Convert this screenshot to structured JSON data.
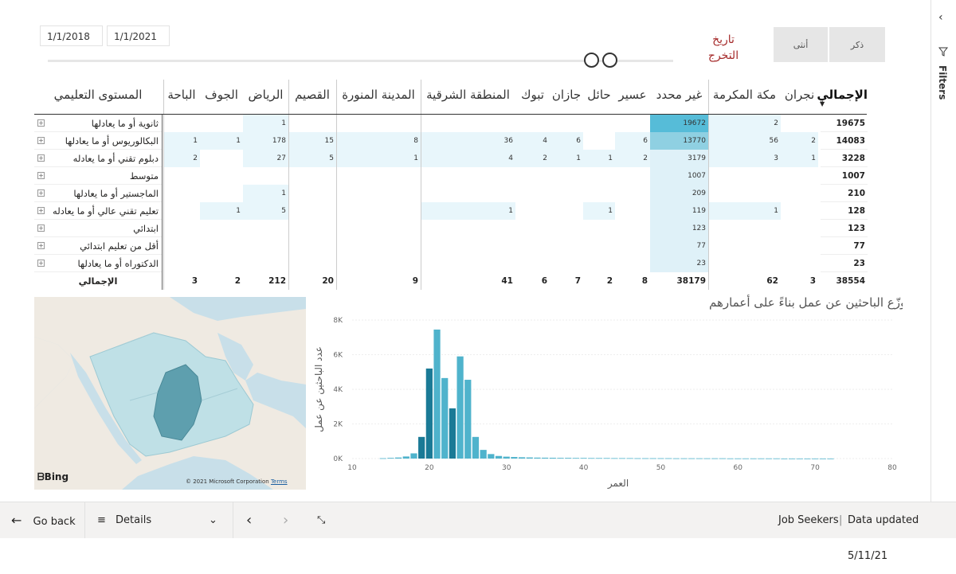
{
  "slicer": {
    "start_date": "1/1/2018",
    "end_date": "1/1/2021",
    "graduation_title_line1": "تاريخ",
    "graduation_title_line2": "التخرج",
    "gender_male": "ذكر",
    "gender_female": "أنثى"
  },
  "filters_pane": {
    "label": "Filters"
  },
  "matrix": {
    "row_header": "المستوى التعليمي",
    "columns": [
      {
        "key": "total",
        "label": "الإجمالي"
      },
      {
        "key": "najran",
        "label": "نجران"
      },
      {
        "key": "makkah",
        "label": "مكة المكرمة"
      },
      {
        "key": "unknown",
        "label": "غير محدد"
      },
      {
        "key": "asir",
        "label": "عسير"
      },
      {
        "key": "hail",
        "label": "حائل"
      },
      {
        "key": "jazan",
        "label": "جازان"
      },
      {
        "key": "tabuk",
        "label": "تبوك"
      },
      {
        "key": "eastern",
        "label": "المنطقة الشرقية"
      },
      {
        "key": "madinah",
        "label": "المدينة المنورة"
      },
      {
        "key": "qassim",
        "label": "القصيم"
      },
      {
        "key": "riyadh",
        "label": "الرياض"
      },
      {
        "key": "jouf",
        "label": "الجوف"
      },
      {
        "key": "baha",
        "label": "الباحة"
      }
    ],
    "rows": [
      {
        "label": "ثانوية أو ما يعادلها",
        "values": {
          "total": "19675",
          "najran": "",
          "makkah": "2",
          "unknown": "19672",
          "asir": "",
          "hail": "",
          "jazan": "",
          "tabuk": "",
          "eastern": "",
          "madinah": "",
          "qassim": "",
          "riyadh": "1",
          "jouf": "",
          "baha": ""
        }
      },
      {
        "label": "البكالوريوس أو ما يعادلها",
        "values": {
          "total": "14083",
          "najran": "2",
          "makkah": "56",
          "unknown": "13770",
          "asir": "6",
          "hail": "",
          "jazan": "6",
          "tabuk": "4",
          "eastern": "36",
          "madinah": "8",
          "qassim": "15",
          "riyadh": "178",
          "jouf": "1",
          "baha": "1"
        }
      },
      {
        "label": "دبلوم تقني أو ما يعادله",
        "values": {
          "total": "3228",
          "najran": "1",
          "makkah": "3",
          "unknown": "3179",
          "asir": "2",
          "hail": "1",
          "jazan": "1",
          "tabuk": "2",
          "eastern": "4",
          "madinah": "1",
          "qassim": "5",
          "riyadh": "27",
          "jouf": "",
          "baha": "2"
        }
      },
      {
        "label": "متوسط",
        "values": {
          "total": "1007",
          "najran": "",
          "makkah": "",
          "unknown": "1007",
          "asir": "",
          "hail": "",
          "jazan": "",
          "tabuk": "",
          "eastern": "",
          "madinah": "",
          "qassim": "",
          "riyadh": "",
          "jouf": "",
          "baha": ""
        }
      },
      {
        "label": "الماجستير أو ما يعادلها",
        "values": {
          "total": "210",
          "najran": "",
          "makkah": "",
          "unknown": "209",
          "asir": "",
          "hail": "",
          "jazan": "",
          "tabuk": "",
          "eastern": "",
          "madinah": "",
          "qassim": "",
          "riyadh": "1",
          "jouf": "",
          "baha": ""
        }
      },
      {
        "label": "تعليم تقني عالي أو ما يعادله",
        "values": {
          "total": "128",
          "najran": "",
          "makkah": "1",
          "unknown": "119",
          "asir": "",
          "hail": "1",
          "jazan": "",
          "tabuk": "",
          "eastern": "1",
          "madinah": "",
          "qassim": "",
          "riyadh": "5",
          "jouf": "1",
          "baha": ""
        }
      },
      {
        "label": "ابتدائي",
        "values": {
          "total": "123",
          "najran": "",
          "makkah": "",
          "unknown": "123",
          "asir": "",
          "hail": "",
          "jazan": "",
          "tabuk": "",
          "eastern": "",
          "madinah": "",
          "qassim": "",
          "riyadh": "",
          "jouf": "",
          "baha": ""
        }
      },
      {
        "label": "أقل من تعليم ابتدائي",
        "values": {
          "total": "77",
          "najran": "",
          "makkah": "",
          "unknown": "77",
          "asir": "",
          "hail": "",
          "jazan": "",
          "tabuk": "",
          "eastern": "",
          "madinah": "",
          "qassim": "",
          "riyadh": "",
          "jouf": "",
          "baha": ""
        }
      },
      {
        "label": "الدكتوراه أو ما يعادلها",
        "values": {
          "total": "23",
          "najran": "",
          "makkah": "",
          "unknown": "23",
          "asir": "",
          "hail": "",
          "jazan": "",
          "tabuk": "",
          "eastern": "",
          "madinah": "",
          "qassim": "",
          "riyadh": "",
          "jouf": "",
          "baha": ""
        }
      }
    ],
    "totals_label": "الإجمالي",
    "totals": {
      "total": "38554",
      "najran": "3",
      "makkah": "62",
      "unknown": "38179",
      "asir": "8",
      "hail": "2",
      "jazan": "7",
      "tabuk": "6",
      "eastern": "41",
      "madinah": "9",
      "qassim": "20",
      "riyadh": "212",
      "jouf": "2",
      "baha": "3"
    }
  },
  "map": {
    "bing_label": "Bing",
    "copyright": "© 2021 Microsoft Corporation",
    "terms": "Terms",
    "colors": {
      "water": "#c8dfe9",
      "land": "#efeae2",
      "region_light": "#bfe0e6",
      "region_dark": "#5e9fae"
    }
  },
  "chart_data": {
    "type": "bar",
    "title": "توزّع الباحثين عن عمل بناءً على أعمارهم",
    "xlabel": "العمر",
    "ylabel": "عدد الباحثين عن عمل",
    "xlim": [
      10,
      80
    ],
    "ylim": [
      0,
      8000
    ],
    "xticks": [
      "10",
      "20",
      "30",
      "40",
      "50",
      "60",
      "70",
      "80"
    ],
    "yticks": [
      "0K",
      "2K",
      "4K",
      "6K",
      "8K"
    ],
    "x": [
      14,
      15,
      16,
      17,
      18,
      19,
      20,
      21,
      22,
      23,
      24,
      25,
      26,
      27,
      28,
      29,
      30,
      31,
      32,
      33,
      34,
      35,
      36,
      37,
      38,
      39,
      40,
      41,
      42,
      43,
      44,
      45,
      46,
      47,
      48,
      49,
      50,
      51,
      52,
      53,
      54,
      55,
      56,
      57,
      58,
      59,
      60,
      61,
      62,
      63,
      64,
      65,
      66,
      67,
      68,
      69,
      70,
      71,
      72
    ],
    "values": [
      20,
      40,
      60,
      120,
      300,
      1250,
      5200,
      7450,
      4650,
      2900,
      5900,
      4550,
      1250,
      500,
      260,
      150,
      110,
      90,
      75,
      65,
      55,
      50,
      45,
      40,
      40,
      35,
      35,
      30,
      30,
      30,
      25,
      25,
      25,
      20,
      20,
      20,
      20,
      20,
      15,
      15,
      15,
      15,
      15,
      15,
      15,
      10,
      10,
      10,
      10,
      10,
      10,
      10,
      5,
      5,
      5,
      5,
      5,
      5,
      5
    ],
    "bar_color": "#4fb3cc",
    "highlight_color": "#1a7a96",
    "highlight_x": [
      19,
      20,
      23
    ]
  },
  "bottom_bar": {
    "go_back": "Go back",
    "details": "Details",
    "report_name": "Job Seekers",
    "updated": "Data updated 5/11/21"
  }
}
